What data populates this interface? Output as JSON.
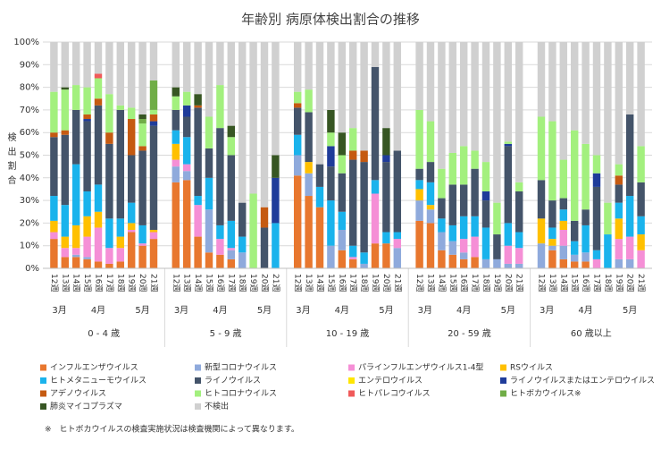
{
  "chart_data": {
    "type": "bar",
    "stacked": true,
    "title": "年齢別 病原体検出割合の推移",
    "y_label": "検出割合",
    "groups": [
      {
        "name": "0 - 4 歳",
        "months": [
          {
            "name": "3月",
            "weeks": [
              "12週",
              "13週"
            ]
          },
          {
            "name": "4月",
            "weeks": [
              "14週",
              "15週",
              "16週",
              "17週",
              "18週"
            ]
          },
          {
            "name": "5月",
            "weeks": [
              "19週",
              "20週",
              "21週"
            ]
          }
        ]
      },
      {
        "name": "5 - 9 歳",
        "months": [
          {
            "name": "3月",
            "weeks": [
              "12週",
              "13週"
            ]
          },
          {
            "name": "4月",
            "weeks": [
              "14週",
              "15週",
              "16週",
              "17週",
              "18週"
            ]
          },
          {
            "name": "5月",
            "weeks": [
              "19週",
              "20週",
              "21週"
            ]
          }
        ]
      },
      {
        "name": "10 - 19 歳",
        "months": [
          {
            "name": "3月",
            "weeks": [
              "12週",
              "13週"
            ]
          },
          {
            "name": "4月",
            "weeks": [
              "14週",
              "15週",
              "16週",
              "17週",
              "18週"
            ]
          },
          {
            "name": "5月",
            "weeks": [
              "19週",
              "20週",
              "21週"
            ]
          }
        ]
      },
      {
        "name": "20 - 59 歳",
        "months": [
          {
            "name": "3月",
            "weeks": [
              "12週",
              "13週"
            ]
          },
          {
            "name": "4月",
            "weeks": [
              "14週",
              "15週",
              "16週",
              "17週",
              "18週"
            ]
          },
          {
            "name": "5月",
            "weeks": [
              "19週",
              "20週",
              "21週"
            ]
          }
        ]
      },
      {
        "name": "60 歳以上",
        "months": [
          {
            "name": "3月",
            "weeks": [
              "12週",
              "13週"
            ]
          },
          {
            "name": "4月",
            "weeks": [
              "14週",
              "15週",
              "16週",
              "17週",
              "18週"
            ]
          },
          {
            "name": "5月",
            "weeks": [
              "19週",
              "20週",
              "21週"
            ]
          }
        ]
      }
    ],
    "series": [
      {
        "name": "インフルエンザウイルス",
        "color": "#e8772e",
        "values": [
          13,
          5,
          5,
          4,
          3,
          2,
          3,
          16,
          10,
          13,
          38,
          39,
          14,
          7,
          6,
          4,
          0,
          0,
          0,
          0,
          41,
          32,
          27,
          0,
          8,
          4,
          0,
          11,
          11,
          0,
          21,
          20,
          8,
          6,
          4,
          5,
          0,
          0,
          0,
          0,
          0,
          8,
          4,
          3,
          3,
          0,
          0,
          0,
          0,
          0
        ]
      },
      {
        "name": "新型コロナウイルス",
        "color": "#8faadc",
        "values": [
          0,
          0,
          1,
          1,
          0,
          0,
          0,
          0,
          0,
          0,
          7,
          4,
          0,
          19,
          0,
          4,
          7,
          0,
          0,
          0,
          9,
          10,
          0,
          10,
          9,
          0,
          2,
          0,
          0,
          9,
          9,
          6,
          8,
          6,
          3,
          0,
          4,
          4,
          2,
          2,
          11,
          2,
          6,
          3,
          4,
          0,
          0,
          4,
          4,
          0
        ]
      },
      {
        "name": "パラインフルエンザウイルス1-4型",
        "color": "#f58fd6",
        "values": [
          3,
          4,
          3,
          9,
          15,
          7,
          6,
          1,
          1,
          3,
          3,
          3,
          14,
          0,
          7,
          1,
          0,
          0,
          0,
          0,
          0,
          0,
          0,
          0,
          0,
          1,
          0,
          22,
          0,
          4,
          0,
          0,
          0,
          0,
          6,
          9,
          0,
          0,
          8,
          7,
          0,
          0,
          7,
          0,
          0,
          4,
          0,
          9,
          10,
          8
        ]
      },
      {
        "name": "RSウイルス",
        "color": "#ffc000",
        "values": [
          5,
          5,
          10,
          9,
          7,
          0,
          5,
          3,
          0,
          1,
          7,
          0,
          0,
          0,
          0,
          0,
          0,
          0,
          0,
          0,
          0,
          5,
          0,
          0,
          0,
          0,
          0,
          0,
          0,
          0,
          5,
          2,
          0,
          0,
          0,
          0,
          0,
          0,
          0,
          0,
          11,
          3,
          4,
          0,
          0,
          0,
          0,
          9,
          0,
          7
        ]
      },
      {
        "name": "ヒトメタニューモウイルス",
        "color": "#1ab3ec",
        "values": [
          11,
          14,
          27,
          11,
          12,
          13,
          8,
          9,
          8,
          0,
          6,
          12,
          4,
          14,
          6,
          12,
          7,
          0,
          0,
          20,
          9,
          0,
          9,
          20,
          8,
          5,
          5,
          6,
          5,
          3,
          4,
          10,
          6,
          7,
          10,
          9,
          14,
          0,
          10,
          7,
          0,
          5,
          5,
          6,
          12,
          4,
          15,
          7,
          18,
          8
        ]
      },
      {
        "name": "ライノウイルス",
        "color": "#44546a",
        "values": [
          26,
          31,
          24,
          31,
          35,
          33,
          48,
          21,
          33,
          46,
          9,
          9,
          39,
          13,
          43,
          29,
          15,
          0,
          18,
          0,
          12,
          22,
          10,
          15,
          17,
          38,
          40,
          50,
          31,
          36,
          5,
          9,
          9,
          18,
          14,
          21,
          12,
          11,
          34,
          18,
          17,
          12,
          5,
          9,
          7,
          28,
          0,
          8,
          36,
          15
        ]
      },
      {
        "name": "エンテロウイルス",
        "color": "#ffe600",
        "values": [
          0,
          0,
          0,
          0,
          0,
          0,
          0,
          0,
          0,
          0,
          0,
          0,
          0,
          0,
          0,
          0,
          0,
          0,
          0,
          0,
          0,
          0,
          0,
          0,
          0,
          0,
          0,
          0,
          0,
          0,
          0,
          0,
          0,
          0,
          0,
          0,
          0,
          0,
          0,
          0,
          0,
          0,
          0,
          0,
          0,
          0,
          0,
          0,
          0,
          0
        ]
      },
      {
        "name": "ライノウイルスまたはエンテロウイルス",
        "color": "#1f3c9a",
        "values": [
          0,
          0,
          0,
          1,
          0,
          0,
          0,
          0,
          0,
          2,
          0,
          5,
          0,
          0,
          0,
          0,
          0,
          0,
          0,
          20,
          0,
          0,
          0,
          9,
          0,
          0,
          0,
          0,
          3,
          0,
          0,
          0,
          0,
          0,
          0,
          0,
          4,
          0,
          1,
          0,
          0,
          0,
          0,
          0,
          0,
          6,
          0,
          0,
          0,
          0
        ]
      },
      {
        "name": "アデノウイルス",
        "color": "#c55a11",
        "values": [
          2,
          2,
          0,
          2,
          3,
          5,
          0,
          16,
          2,
          3,
          0,
          0,
          1,
          0,
          0,
          0,
          0,
          0,
          9,
          0,
          2,
          0,
          0,
          0,
          0,
          4,
          5,
          0,
          0,
          0,
          0,
          0,
          0,
          0,
          0,
          0,
          0,
          0,
          0,
          0,
          0,
          0,
          0,
          0,
          0,
          0,
          0,
          4,
          0,
          0
        ]
      },
      {
        "name": "ヒトコロナウイルス",
        "color": "#a3f07e",
        "values": [
          18,
          18,
          11,
          12,
          9,
          17,
          2,
          5,
          10,
          2,
          6,
          6,
          0,
          14,
          19,
          8,
          0,
          33,
          0,
          0,
          5,
          10,
          0,
          6,
          8,
          10,
          0,
          0,
          0,
          0,
          26,
          18,
          13,
          14,
          17,
          8,
          13,
          14,
          1,
          4,
          28,
          35,
          17,
          40,
          29,
          8,
          14,
          5,
          0,
          16
        ]
      },
      {
        "name": "ヒトパレコウイルス",
        "color": "#f05a5a",
        "values": [
          0,
          0,
          0,
          0,
          2,
          0,
          0,
          0,
          0,
          0,
          0,
          0,
          0,
          0,
          0,
          0,
          0,
          0,
          0,
          0,
          0,
          0,
          0,
          0,
          0,
          0,
          0,
          0,
          0,
          0,
          0,
          0,
          0,
          0,
          0,
          0,
          0,
          0,
          0,
          0,
          0,
          0,
          0,
          0,
          0,
          0,
          0,
          0,
          0,
          0
        ]
      },
      {
        "name": "ヒトボカウイルス※",
        "color": "#70ad47",
        "values": [
          0,
          0,
          0,
          0,
          0,
          0,
          0,
          0,
          2,
          13,
          0,
          0,
          0,
          0,
          0,
          0,
          0,
          0,
          0,
          0,
          0,
          0,
          0,
          0,
          0,
          0,
          0,
          0,
          0,
          0,
          0,
          0,
          0,
          0,
          0,
          0,
          0,
          0,
          0,
          0,
          0,
          0,
          0,
          0,
          0,
          0,
          0,
          0,
          0,
          0
        ]
      },
      {
        "name": "肺炎マイコプラズマ",
        "color": "#375623",
        "values": [
          0,
          1,
          0,
          0,
          0,
          0,
          0,
          0,
          2,
          0,
          4,
          0,
          5,
          0,
          0,
          5,
          0,
          0,
          0,
          10,
          0,
          0,
          0,
          10,
          10,
          0,
          0,
          0,
          12,
          0,
          0,
          0,
          0,
          0,
          0,
          0,
          0,
          0,
          0,
          0,
          0,
          0,
          0,
          0,
          0,
          0,
          0,
          0,
          0,
          0
        ]
      },
      {
        "name": "不検出",
        "color": "#d0d0d0",
        "values": [
          22,
          20,
          19,
          20,
          14,
          23,
          28,
          29,
          32,
          17,
          20,
          22,
          23,
          33,
          19,
          37,
          71,
          67,
          73,
          50,
          22,
          21,
          54,
          30,
          40,
          38,
          48,
          11,
          38,
          48,
          30,
          35,
          56,
          49,
          46,
          48,
          53,
          71,
          44,
          62,
          33,
          35,
          52,
          39,
          45,
          50,
          71,
          54,
          32,
          46
        ]
      }
    ],
    "ylim": [
      0,
      100
    ],
    "yticks": [
      {
        "value": 0,
        "label": "0%"
      },
      {
        "value": 10,
        "label": "10%"
      },
      {
        "value": 20,
        "label": "20%"
      },
      {
        "value": 30,
        "label": "30%"
      },
      {
        "value": 40,
        "label": "40%"
      },
      {
        "value": 50,
        "label": "50%"
      },
      {
        "value": 60,
        "label": "60%"
      },
      {
        "value": 70,
        "label": "70%"
      },
      {
        "value": 80,
        "label": "80%"
      },
      {
        "value": 90,
        "label": "90%"
      },
      {
        "value": 100,
        "label": "100%"
      }
    ],
    "grid": true,
    "legend": "bottom",
    "note": "※　ヒトボカウイルスの検査実施状況は検査機関によって異なります。"
  }
}
